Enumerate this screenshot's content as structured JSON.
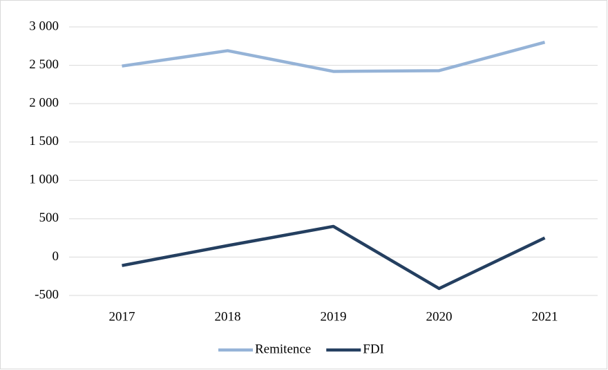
{
  "chart_data": {
    "type": "line",
    "categories": [
      "2017",
      "2018",
      "2019",
      "2020",
      "2021"
    ],
    "series": [
      {
        "name": "Remitence",
        "color": "#95b3d7",
        "values": [
          2490,
          2690,
          2420,
          2430,
          2800
        ]
      },
      {
        "name": "FDI",
        "color": "#243f60",
        "values": [
          -110,
          150,
          400,
          -410,
          250
        ]
      }
    ],
    "ylim": [
      -500,
      3000
    ],
    "yticks": [
      -500,
      0,
      500,
      {
        "value": 1000,
        "label": "1 000"
      },
      {
        "value": 1500,
        "label": "1 500"
      },
      {
        "value": 2000,
        "label": "2 000"
      },
      {
        "value": 2500,
        "label": "2 500"
      },
      {
        "value": 3000,
        "label": "3 000"
      }
    ],
    "grid": true,
    "legend": "bottom"
  }
}
